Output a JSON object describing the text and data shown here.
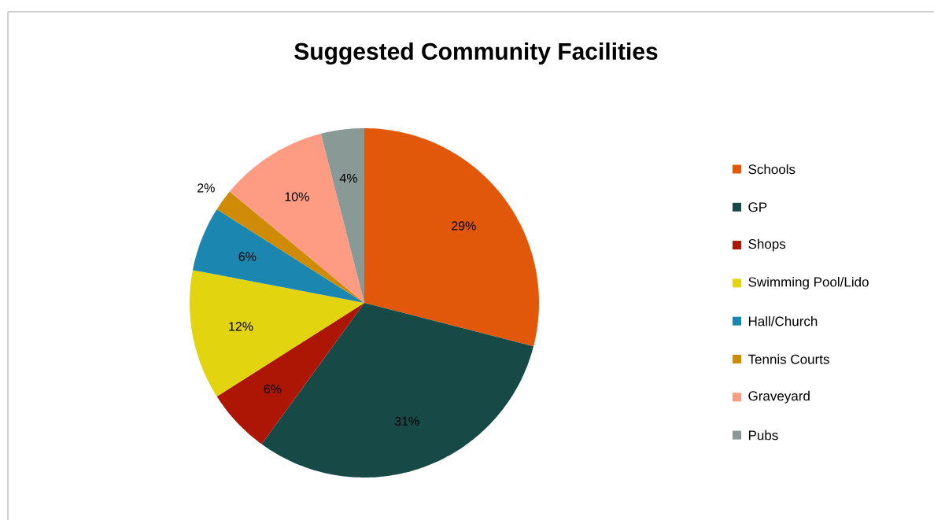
{
  "chart_data": {
    "type": "pie",
    "title": "Suggested Community Facilities",
    "categories": [
      "Schools",
      "GP",
      "Shops",
      "Swimming Pool/Lido",
      "Hall/Church",
      "Tennis Courts",
      "Graveyard",
      "Pubs"
    ],
    "values": [
      29,
      31,
      6,
      12,
      6,
      2,
      10,
      4
    ],
    "value_labels": [
      "29%",
      "31%",
      "6%",
      "12%",
      "6%",
      "2%",
      "10%",
      "4%"
    ],
    "colors": [
      "#e2580b",
      "#174a47",
      "#ad1505",
      "#e2d40e",
      "#1b87b0",
      "#cf8a06",
      "#fe9b83",
      "#889996"
    ],
    "legend": "right"
  }
}
